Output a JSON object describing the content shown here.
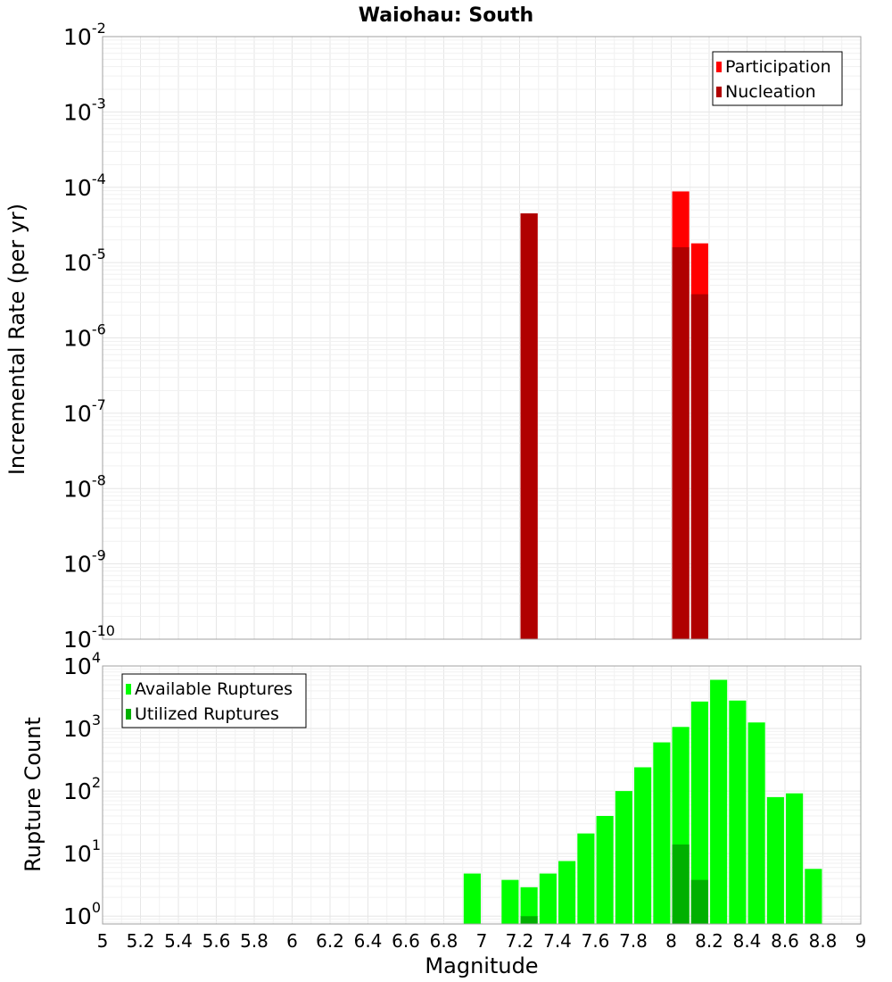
{
  "chart_data": [
    {
      "type": "bar",
      "title": "Waiohau: South",
      "ylabel": "Incremental Rate (per yr)",
      "xlabel": "",
      "xlim": [
        5,
        9
      ],
      "ylim": [
        1e-10,
        0.01
      ],
      "yscale": "log",
      "grid": true,
      "legend_position": "top-right",
      "bar_width": 0.09,
      "series": [
        {
          "name": "Participation",
          "color": "#ff0000",
          "x": [
            7.25,
            8.05,
            8.15
          ],
          "values": [
            4.5e-05,
            8.8e-05,
            1.8e-05
          ]
        },
        {
          "name": "Nucleation",
          "color": "#b00000",
          "x": [
            7.25,
            8.05,
            8.15
          ],
          "values": [
            4.5e-05,
            1.6e-05,
            3.8e-06
          ]
        }
      ]
    },
    {
      "type": "bar",
      "title": "",
      "ylabel": "Rupture Count",
      "xlabel": "Magnitude",
      "xlim": [
        5,
        9
      ],
      "ylim": [
        0.75,
        10000
      ],
      "yscale": "log",
      "grid": true,
      "legend_position": "top-left",
      "bar_width": 0.09,
      "series": [
        {
          "name": "Available Ruptures",
          "color": "#00ff00",
          "x": [
            6.95,
            7.15,
            7.25,
            7.35,
            7.45,
            7.55,
            7.65,
            7.75,
            7.85,
            7.95,
            8.05,
            8.15,
            8.25,
            8.35,
            8.45,
            8.55,
            8.65,
            8.75
          ],
          "values": [
            4.8,
            3.8,
            2.9,
            4.8,
            7.6,
            21,
            40,
            100,
            240,
            600,
            1060,
            2700,
            6000,
            2800,
            1250,
            80,
            92,
            5.7
          ]
        },
        {
          "name": "Utilized Ruptures",
          "color": "#00b000",
          "x": [
            7.25,
            8.05,
            8.15
          ],
          "values": [
            1,
            14,
            3.8
          ]
        }
      ]
    }
  ],
  "x_ticks": [
    "5",
    "5.2",
    "5.4",
    "5.6",
    "5.8",
    "6",
    "6.2",
    "6.4",
    "6.6",
    "6.8",
    "7",
    "7.2",
    "7.4",
    "7.6",
    "7.8",
    "8",
    "8.2",
    "8.4",
    "8.6",
    "8.8",
    "9"
  ],
  "top_y_ticks": [
    {
      "base": "10",
      "exp": "-2",
      "value": 0.01
    },
    {
      "base": "10",
      "exp": "-3",
      "value": 0.001
    },
    {
      "base": "10",
      "exp": "-4",
      "value": 0.0001
    },
    {
      "base": "10",
      "exp": "-5",
      "value": 1e-05
    },
    {
      "base": "10",
      "exp": "-6",
      "value": 1e-06
    },
    {
      "base": "10",
      "exp": "-7",
      "value": 1e-07
    },
    {
      "base": "10",
      "exp": "-8",
      "value": 1e-08
    },
    {
      "base": "10",
      "exp": "-9",
      "value": 1e-09
    },
    {
      "base": "10",
      "exp": "-10",
      "value": 1e-10
    }
  ],
  "bottom_y_ticks": [
    {
      "base": "10",
      "exp": "4",
      "value": 10000
    },
    {
      "base": "10",
      "exp": "3",
      "value": 1000
    },
    {
      "base": "10",
      "exp": "2",
      "value": 100
    },
    {
      "base": "10",
      "exp": "1",
      "value": 10
    },
    {
      "base": "10",
      "exp": "0",
      "value": 1
    }
  ]
}
